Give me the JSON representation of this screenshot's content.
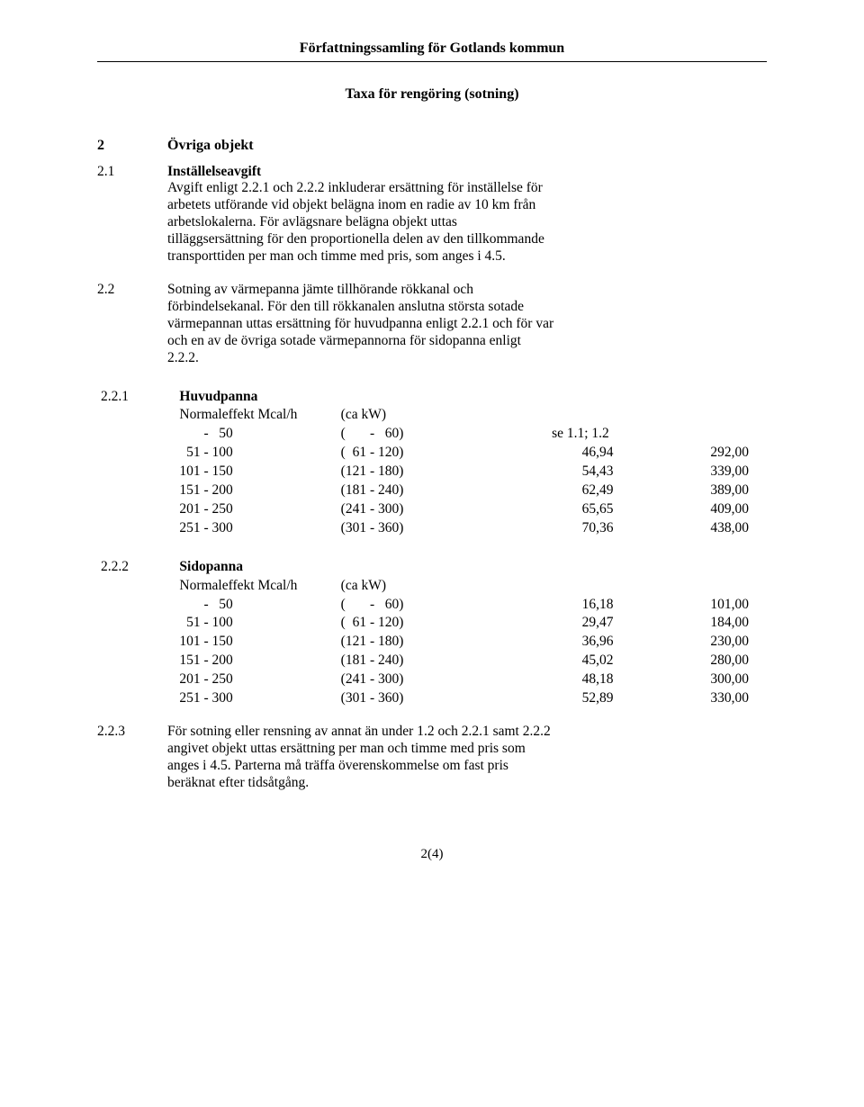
{
  "header": {
    "org_title": "Författningssamling för Gotlands kommun",
    "doc_title": "Taxa för rengöring (sotning)"
  },
  "sections": {
    "s2": {
      "num": "2",
      "title": "Övriga objekt"
    },
    "s21": {
      "num": "2.1",
      "title": "Inställelseavgift",
      "body": "Avgift enligt 2.2.1 och 2.2.2 inkluderar ersättning för inställelse för arbetets utförande vid objekt belägna inom en radie av 10 km från arbetslokalerna. För avlägsnare belägna objekt uttas tilläggsersättning för den proportionella delen av den tillkommande transporttiden per man och timme med pris, som anges i 4.5."
    },
    "s22": {
      "num": "2.2",
      "body": "Sotning av värmepanna jämte tillhörande rökkanal och förbindelsekanal. För den till rökkanalen anslutna största sotade värmepannan uttas ersättning för huvudpanna enligt 2.2.1 och för var och en av de övriga sotade värmepannorna för sidopanna enligt 2.2.2."
    },
    "s221": {
      "num": "2.2.1",
      "title": "Huvudpanna",
      "col_head_a": "Normaleffekt Mcal/h",
      "col_head_b": "(ca kW)",
      "rows": [
        {
          "mcal": "       -   50",
          "kw": "(       -   60)",
          "v1": "se 1.1; 1.2",
          "v2": ""
        },
        {
          "mcal": "  51 - 100",
          "kw": "(  61 - 120)",
          "v1": "46,94",
          "v2": "292,00"
        },
        {
          "mcal": "101 - 150",
          "kw": "(121 - 180)",
          "v1": "54,43",
          "v2": "339,00"
        },
        {
          "mcal": "151 - 200",
          "kw": "(181 - 240)",
          "v1": "62,49",
          "v2": "389,00"
        },
        {
          "mcal": "201 - 250",
          "kw": "(241 - 300)",
          "v1": "65,65",
          "v2": "409,00"
        },
        {
          "mcal": "251 - 300",
          "kw": "(301 - 360)",
          "v1": "70,36",
          "v2": "438,00"
        }
      ]
    },
    "s222": {
      "num": "2.2.2",
      "title": "Sidopanna",
      "col_head_a": "Normaleffekt Mcal/h",
      "col_head_b": "(ca kW)",
      "rows": [
        {
          "mcal": "       -   50",
          "kw": "(       -   60)",
          "v1": "16,18",
          "v2": "101,00"
        },
        {
          "mcal": "  51 - 100",
          "kw": "(  61 - 120)",
          "v1": "29,47",
          "v2": "184,00"
        },
        {
          "mcal": "101 - 150",
          "kw": "(121 - 180)",
          "v1": "36,96",
          "v2": "230,00"
        },
        {
          "mcal": "151 - 200",
          "kw": "(181 - 240)",
          "v1": "45,02",
          "v2": "280,00"
        },
        {
          "mcal": "201 - 250",
          "kw": "(241 - 300)",
          "v1": "48,18",
          "v2": "300,00"
        },
        {
          "mcal": "251 - 300",
          "kw": "(301 - 360)",
          "v1": "52,89",
          "v2": "330,00"
        }
      ]
    },
    "s223": {
      "num": "2.2.3",
      "body": "För sotning eller rensning av annat än under 1.2 och 2.2.1 samt 2.2.2 angivet objekt uttas ersättning per man och timme med pris som anges i 4.5. Parterna må träffa överenskommelse om fast pris beräknat efter tidsåtgång."
    }
  },
  "footer": {
    "page": "2(4)"
  }
}
